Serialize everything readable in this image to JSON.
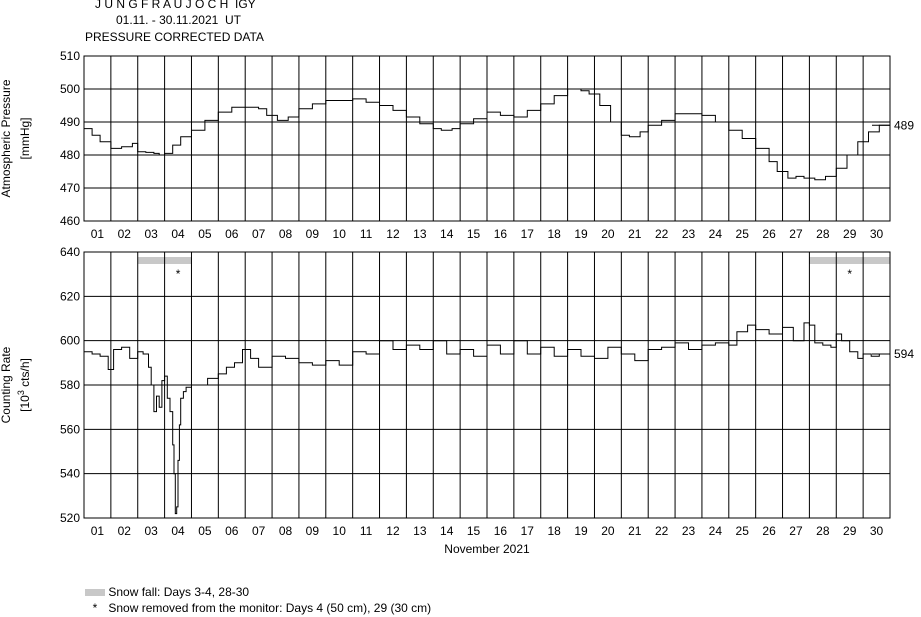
{
  "header": {
    "station": "J U N G F R A U J O C H  IGY",
    "period": "01.11. - 30.11.2021  UT",
    "subtitle": "PRESSURE CORRECTED DATA"
  },
  "legend": {
    "snow_fall": "Snow fall: Days 3-4, 28-30",
    "snow_removed": "Snow removed from the monitor: Days 4 (50 cm), 29 (30 cm)",
    "snow_color": "#c8c8c8"
  },
  "chart_data": [
    {
      "type": "line",
      "ylabel": "Atmospheric Pressure",
      "yunit": "[mmHg]",
      "ylim": [
        460,
        510
      ],
      "yticks": [
        460,
        470,
        480,
        490,
        500,
        510
      ],
      "xlim": [
        1,
        31
      ],
      "x_tick_labels": [
        "01",
        "02",
        "03",
        "04",
        "05",
        "06",
        "07",
        "08",
        "09",
        "10",
        "11",
        "12",
        "13",
        "14",
        "15",
        "16",
        "17",
        "18",
        "19",
        "20",
        "21",
        "22",
        "23",
        "24",
        "25",
        "26",
        "27",
        "28",
        "29",
        "30"
      ],
      "grid": true,
      "reference_value": 489,
      "reference_label": "489",
      "series": [
        {
          "x": [
            1.0,
            1.3,
            1.6,
            2.0,
            2.4,
            2.8,
            3.0,
            3.3,
            3.6,
            3.8,
            4.0,
            4.3,
            4.6,
            5.0,
            5.5,
            6.0,
            6.5,
            7.0,
            7.5,
            7.8,
            8.2,
            8.6,
            9.0,
            9.5,
            10.0,
            10.5,
            11.0,
            11.5,
            12.0,
            12.5,
            13.0,
            13.5,
            14.0,
            14.3,
            14.7,
            15.0,
            15.5,
            16.0,
            16.5,
            17.0,
            17.5,
            18.0,
            18.5,
            19.0,
            19.5,
            19.8,
            20.2,
            20.6,
            21.0,
            21.3,
            21.7,
            22.0,
            22.5,
            23.0,
            23.5,
            24.0,
            24.5,
            25.0,
            25.5,
            26.0,
            26.5,
            26.8,
            27.2,
            27.5,
            27.8,
            28.2,
            28.6,
            29.0,
            29.4,
            29.8,
            30.2,
            30.6,
            31.0
          ],
          "y": [
            488,
            486,
            484,
            482,
            482.5,
            483.5,
            481,
            480.8,
            480.5,
            480,
            480.5,
            483,
            485.5,
            487.5,
            490.5,
            493,
            494.5,
            494.5,
            494,
            492,
            490.5,
            491.5,
            494,
            495.5,
            496.5,
            496.5,
            497,
            496,
            495,
            493.5,
            491.5,
            489.5,
            488,
            487.5,
            488,
            489.5,
            491,
            493,
            492,
            491.5,
            493.5,
            495.5,
            498,
            500,
            499.5,
            498.5,
            495,
            490,
            486,
            485.5,
            487,
            489,
            490.5,
            492.5,
            492.5,
            492,
            490,
            487.5,
            485,
            482,
            478,
            475,
            473,
            473.5,
            473,
            472.5,
            473.5,
            476,
            480,
            484,
            487,
            489,
            489
          ]
        }
      ]
    },
    {
      "type": "line",
      "ylabel": "Counting Rate",
      "yunit_prefix": "[10",
      "yunit_exp": "3",
      "yunit_suffix": " cts/h]",
      "ylim": [
        520,
        640
      ],
      "yticks": [
        520,
        540,
        560,
        580,
        600,
        620,
        640
      ],
      "xlim": [
        1,
        31
      ],
      "x_tick_labels": [
        "01",
        "02",
        "03",
        "04",
        "05",
        "06",
        "07",
        "08",
        "09",
        "10",
        "11",
        "12",
        "13",
        "14",
        "15",
        "16",
        "17",
        "18",
        "19",
        "20",
        "21",
        "22",
        "23",
        "24",
        "25",
        "26",
        "27",
        "28",
        "29",
        "30"
      ],
      "xlabel": "November 2021",
      "grid": true,
      "reference_value": 594,
      "reference_label": "594",
      "snow_fall": [
        [
          3,
          5
        ],
        [
          28,
          31
        ]
      ],
      "snow_removed": [
        4,
        29
      ],
      "snow_removed_mark": "*",
      "series": [
        {
          "x": [
            1.0,
            1.3,
            1.6,
            1.9,
            2.1,
            2.4,
            2.7,
            3.0,
            3.2,
            3.4,
            3.5,
            3.6,
            3.7,
            3.8,
            3.9,
            4.0,
            4.1,
            4.2,
            4.3,
            4.35,
            4.4,
            4.45,
            4.5,
            4.55,
            4.6,
            4.7,
            4.8,
            5.0,
            5.3,
            5.6,
            6.0,
            6.3,
            6.6,
            6.9,
            7.2,
            7.5,
            8.0,
            8.5,
            9.0,
            9.5,
            10.0,
            10.5,
            11.0,
            11.5,
            12.0,
            12.5,
            13.0,
            13.5,
            14.0,
            14.5,
            15.0,
            15.5,
            16.0,
            16.5,
            17.0,
            17.5,
            18.0,
            18.5,
            19.0,
            19.5,
            20.0,
            20.5,
            21.0,
            21.5,
            22.0,
            22.5,
            23.0,
            23.5,
            24.0,
            24.5,
            25.0,
            25.3,
            25.7,
            26.0,
            26.5,
            27.0,
            27.4,
            27.8,
            28.0,
            28.2,
            28.5,
            28.8,
            29.0,
            29.2,
            29.5,
            29.8,
            30.0,
            30.3,
            30.6,
            31.0
          ],
          "y": [
            595,
            594,
            593,
            587,
            596,
            597,
            592,
            595,
            594,
            588,
            580,
            568,
            575,
            570,
            582,
            584,
            574,
            568,
            553,
            540,
            522,
            525,
            546,
            562,
            574,
            577,
            579,
            580,
            580,
            583,
            585,
            588,
            590,
            596,
            592,
            588,
            593,
            592,
            590,
            589,
            591,
            589,
            595,
            594,
            600,
            596,
            598,
            596,
            600,
            594,
            596,
            593,
            598,
            594,
            600,
            594,
            597,
            593,
            596,
            593,
            592,
            597,
            594,
            591,
            596,
            597,
            599,
            596,
            598,
            599,
            598,
            604,
            607,
            605,
            603,
            606,
            600,
            608,
            607,
            599,
            598,
            597,
            603,
            600,
            595,
            592,
            594,
            593,
            594,
            594
          ]
        }
      ]
    }
  ]
}
